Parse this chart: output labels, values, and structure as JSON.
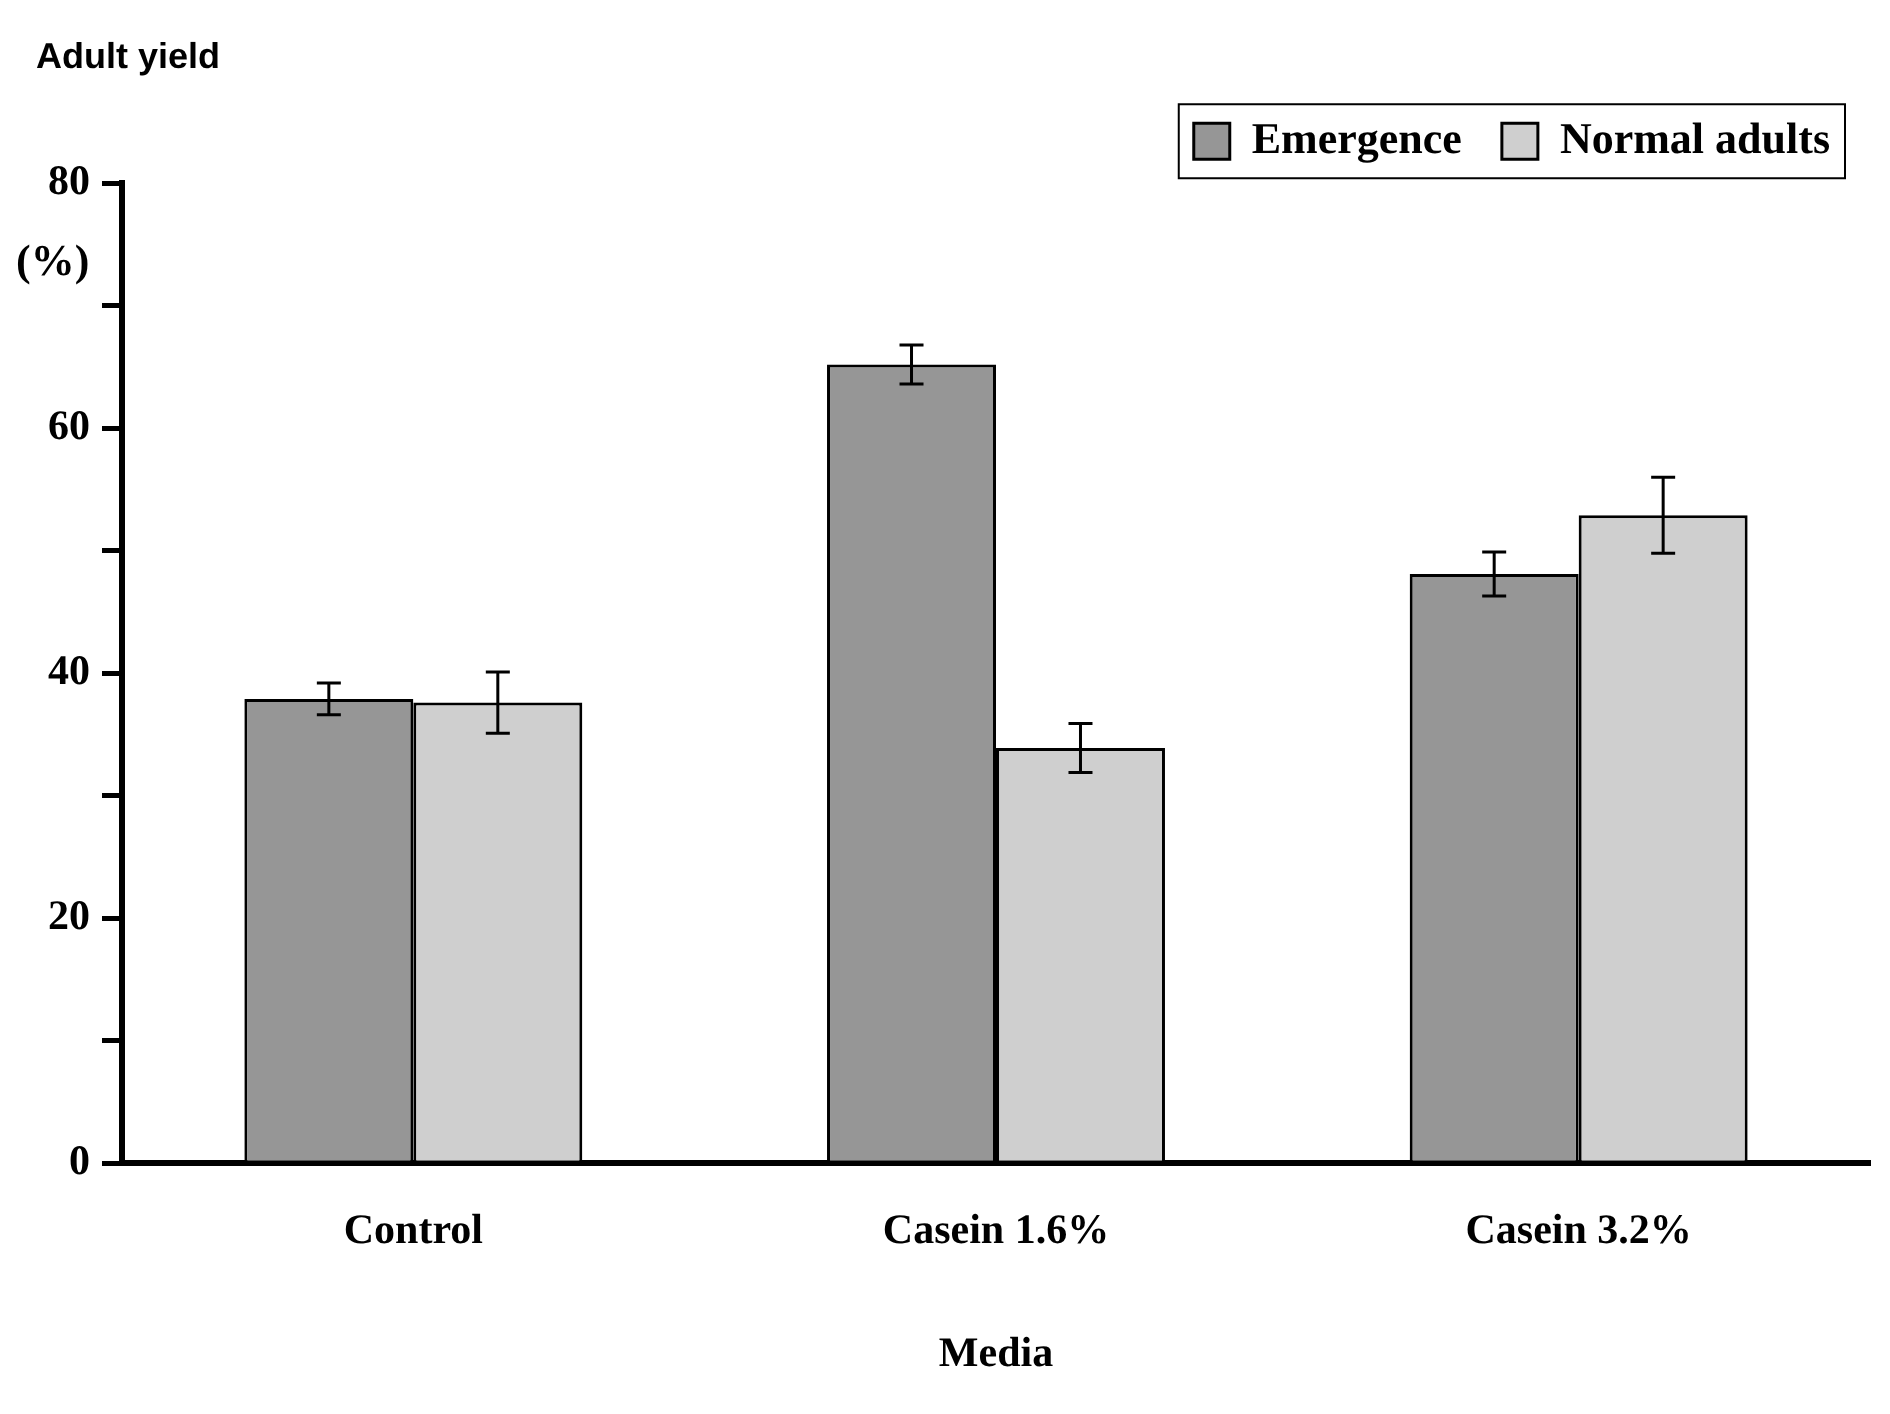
{
  "chart_data": {
    "type": "bar",
    "title": "Adult yield",
    "xlabel": "Media",
    "ylabel": "(%)",
    "categories": [
      "Control",
      "Casein 1.6%",
      "Casein 3.2%"
    ],
    "series": [
      {
        "name": "Emergence",
        "color": "#969696",
        "values": [
          37.9,
          65.2,
          48.1
        ],
        "errors": [
          1.3,
          1.6,
          1.8
        ]
      },
      {
        "name": "Normal adults",
        "color": "#cfcfcf",
        "values": [
          37.6,
          33.9,
          52.9
        ],
        "errors": [
          2.5,
          2.0,
          3.1
        ]
      }
    ],
    "ylim": [
      0,
      80
    ],
    "yticks": [
      0,
      {
        "value": 10,
        "label": null
      },
      20,
      {
        "value": 30,
        "label": null
      },
      40,
      {
        "value": 50,
        "label": null
      },
      60,
      {
        "value": 70,
        "label": null
      },
      80
    ],
    "grid": false,
    "legend": "top right"
  }
}
